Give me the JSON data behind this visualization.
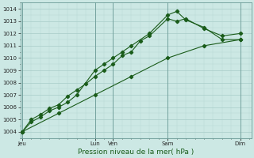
{
  "xlabel": "Pression niveau de la mer( hPa )",
  "bg_color": "#cce8e4",
  "line_color": "#1a5c1a",
  "ylim": [
    1003.5,
    1014.5
  ],
  "yticks": [
    1004,
    1005,
    1006,
    1007,
    1008,
    1009,
    1010,
    1011,
    1012,
    1013,
    1014
  ],
  "xlim": [
    -0.1,
    12.6
  ],
  "xtick_positions": [
    0.0,
    4.0,
    5.0,
    8.0,
    12.0
  ],
  "xtick_labels": [
    "Jeu",
    "Lun",
    "Ven",
    "Sam",
    "Dim"
  ],
  "vline_positions": [
    0.0,
    4.0,
    5.0,
    8.0,
    12.0
  ],
  "line1_x": [
    0,
    0.5,
    1.0,
    1.5,
    2.0,
    2.5,
    3.0,
    4.0,
    4.5,
    5.0,
    5.5,
    6.0,
    7.0,
    8.0,
    8.5,
    9.0,
    10.0,
    11.0,
    12.0
  ],
  "line1_y": [
    1004.0,
    1004.8,
    1005.2,
    1005.7,
    1006.0,
    1006.4,
    1007.0,
    1009.0,
    1009.5,
    1010.0,
    1010.5,
    1011.0,
    1012.0,
    1013.5,
    1013.8,
    1013.1,
    1012.5,
    1011.5,
    1011.5
  ],
  "line2_x": [
    0,
    0.5,
    1.0,
    1.5,
    2.0,
    2.5,
    3.0,
    3.5,
    4.0,
    4.5,
    5.0,
    5.5,
    6.0,
    6.5,
    7.0,
    8.0,
    8.5,
    9.0,
    10.0,
    11.0,
    12.0
  ],
  "line2_y": [
    1004.0,
    1005.0,
    1005.4,
    1005.9,
    1006.2,
    1006.9,
    1007.4,
    1007.9,
    1008.5,
    1009.0,
    1009.5,
    1010.2,
    1010.5,
    1011.4,
    1011.8,
    1013.2,
    1013.0,
    1013.2,
    1012.4,
    1011.8,
    1012.0
  ],
  "line3_x": [
    0,
    2.0,
    4.0,
    6.0,
    8.0,
    10.0,
    12.0
  ],
  "line3_y": [
    1004.0,
    1005.5,
    1007.0,
    1008.5,
    1010.0,
    1011.0,
    1011.5
  ]
}
